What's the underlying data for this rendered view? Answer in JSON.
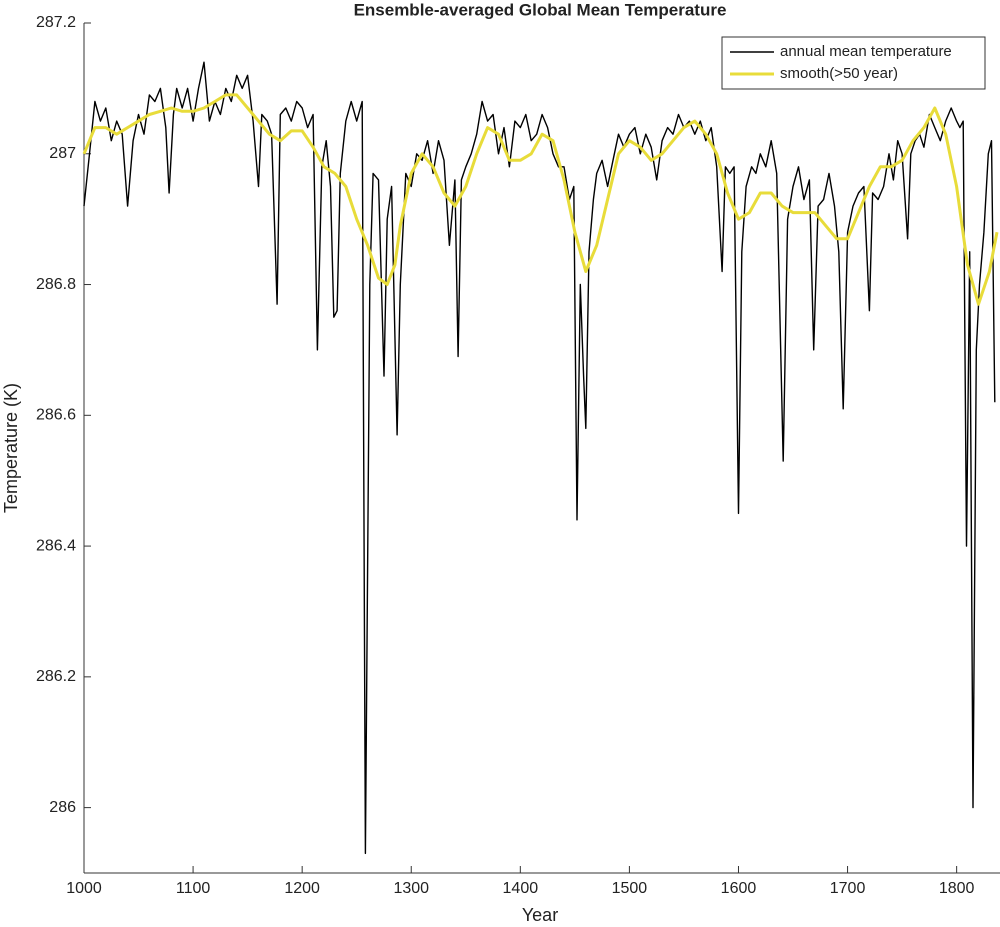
{
  "chart_data": {
    "type": "line",
    "title": "Ensemble-averaged Global Mean Temperature",
    "xlabel": "Year",
    "ylabel": "Temperature (K)",
    "xlim": [
      1000,
      1837
    ],
    "xticks": [
      1000,
      1100,
      1200,
      1300,
      1400,
      1500,
      1600,
      1700,
      1800
    ],
    "ylim": [
      285.9,
      287.2
    ],
    "yticks": [
      286,
      286.2,
      286.4,
      286.6,
      286.8,
      287,
      287.2
    ],
    "legend": "upper right",
    "series": [
      {
        "name": "annual mean temperature",
        "color": "#000000",
        "x": [
          1000,
          1005,
          1010,
          1015,
          1020,
          1025,
          1030,
          1035,
          1040,
          1045,
          1050,
          1055,
          1060,
          1065,
          1070,
          1075,
          1078,
          1082,
          1085,
          1090,
          1095,
          1100,
          1105,
          1110,
          1115,
          1120,
          1125,
          1130,
          1135,
          1140,
          1145,
          1150,
          1155,
          1160,
          1163,
          1168,
          1172,
          1177,
          1180,
          1185,
          1190,
          1195,
          1200,
          1205,
          1210,
          1214,
          1218,
          1222,
          1226,
          1229,
          1232,
          1235,
          1240,
          1245,
          1250,
          1255,
          1258,
          1262,
          1265,
          1270,
          1275,
          1278,
          1282,
          1287,
          1290,
          1295,
          1300,
          1305,
          1310,
          1315,
          1320,
          1325,
          1330,
          1335,
          1340,
          1343,
          1346,
          1350,
          1355,
          1360,
          1365,
          1370,
          1375,
          1380,
          1385,
          1390,
          1395,
          1400,
          1405,
          1410,
          1415,
          1420,
          1425,
          1430,
          1435,
          1440,
          1445,
          1449,
          1452,
          1455,
          1458,
          1460,
          1463,
          1467,
          1470,
          1475,
          1480,
          1485,
          1490,
          1495,
          1500,
          1505,
          1510,
          1515,
          1520,
          1525,
          1530,
          1535,
          1540,
          1545,
          1550,
          1555,
          1560,
          1565,
          1570,
          1575,
          1580,
          1585,
          1588,
          1592,
          1596,
          1600,
          1603,
          1607,
          1612,
          1616,
          1620,
          1625,
          1630,
          1635,
          1641,
          1645,
          1650,
          1655,
          1660,
          1665,
          1669,
          1673,
          1678,
          1683,
          1688,
          1692,
          1696,
          1700,
          1705,
          1710,
          1715,
          1720,
          1723,
          1728,
          1733,
          1738,
          1742,
          1746,
          1750,
          1755,
          1758,
          1762,
          1766,
          1770,
          1775,
          1780,
          1785,
          1790,
          1795,
          1800,
          1803,
          1806,
          1809,
          1812,
          1815,
          1818,
          1821,
          1825,
          1829,
          1832,
          1835
        ],
        "values": [
          286.92,
          287.0,
          287.08,
          287.05,
          287.07,
          287.02,
          287.05,
          287.03,
          286.92,
          287.02,
          287.06,
          287.03,
          287.09,
          287.08,
          287.1,
          287.04,
          286.94,
          287.06,
          287.1,
          287.07,
          287.1,
          287.05,
          287.1,
          287.14,
          287.05,
          287.08,
          287.06,
          287.1,
          287.08,
          287.12,
          287.1,
          287.12,
          287.05,
          286.95,
          287.06,
          287.05,
          287.03,
          286.77,
          287.06,
          287.07,
          287.05,
          287.08,
          287.07,
          287.04,
          287.06,
          286.7,
          286.98,
          287.02,
          286.95,
          286.75,
          286.76,
          286.97,
          287.05,
          287.08,
          287.05,
          287.08,
          285.93,
          286.8,
          286.97,
          286.96,
          286.66,
          286.9,
          286.95,
          286.57,
          286.8,
          286.97,
          286.95,
          287.0,
          286.99,
          287.02,
          286.97,
          287.02,
          286.99,
          286.86,
          286.96,
          286.69,
          286.96,
          286.98,
          287.0,
          287.03,
          287.08,
          287.05,
          287.06,
          287.0,
          287.04,
          286.98,
          287.05,
          287.04,
          287.06,
          287.02,
          287.03,
          287.06,
          287.04,
          287.0,
          286.98,
          286.98,
          286.93,
          286.95,
          286.44,
          286.8,
          286.66,
          286.58,
          286.85,
          286.93,
          286.97,
          286.99,
          286.95,
          286.99,
          287.03,
          287.01,
          287.03,
          287.04,
          287.0,
          287.03,
          287.01,
          286.96,
          287.02,
          287.04,
          287.03,
          287.06,
          287.04,
          287.05,
          287.03,
          287.05,
          287.02,
          287.04,
          286.98,
          286.82,
          286.98,
          286.97,
          286.98,
          286.45,
          286.85,
          286.95,
          286.98,
          286.97,
          287.0,
          286.98,
          287.02,
          286.97,
          286.53,
          286.9,
          286.95,
          286.98,
          286.93,
          286.96,
          286.7,
          286.92,
          286.93,
          286.97,
          286.92,
          286.85,
          286.61,
          286.88,
          286.92,
          286.94,
          286.95,
          286.76,
          286.94,
          286.93,
          286.95,
          287.0,
          286.96,
          287.02,
          287.0,
          286.87,
          287.0,
          287.02,
          287.03,
          287.01,
          287.06,
          287.04,
          287.02,
          287.05,
          287.07,
          287.05,
          287.04,
          287.05,
          286.4,
          286.85,
          286.0,
          286.7,
          286.8,
          286.88,
          287.0,
          287.02,
          286.62
        ]
      },
      {
        "name": "smooth(>50 year)",
        "color": "#e8dc3a",
        "x": [
          1000,
          1010,
          1020,
          1030,
          1040,
          1050,
          1060,
          1070,
          1080,
          1090,
          1100,
          1110,
          1120,
          1130,
          1140,
          1150,
          1160,
          1170,
          1180,
          1190,
          1200,
          1210,
          1220,
          1230,
          1240,
          1250,
          1260,
          1270,
          1278,
          1285,
          1290,
          1300,
          1310,
          1320,
          1330,
          1340,
          1350,
          1360,
          1370,
          1380,
          1390,
          1400,
          1410,
          1420,
          1430,
          1440,
          1450,
          1460,
          1470,
          1480,
          1490,
          1500,
          1510,
          1520,
          1530,
          1540,
          1550,
          1560,
          1570,
          1580,
          1590,
          1600,
          1610,
          1620,
          1630,
          1640,
          1650,
          1660,
          1670,
          1680,
          1690,
          1700,
          1710,
          1720,
          1730,
          1740,
          1750,
          1760,
          1770,
          1780,
          1790,
          1800,
          1810,
          1820,
          1830,
          1837
        ],
        "values": [
          287.0,
          287.04,
          287.04,
          287.03,
          287.04,
          287.05,
          287.06,
          287.065,
          287.07,
          287.065,
          287.065,
          287.07,
          287.08,
          287.09,
          287.09,
          287.07,
          287.05,
          287.03,
          287.02,
          287.035,
          287.035,
          287.01,
          286.98,
          286.97,
          286.95,
          286.9,
          286.86,
          286.81,
          286.8,
          286.83,
          286.89,
          286.97,
          287.0,
          286.98,
          286.94,
          286.92,
          286.95,
          287.0,
          287.04,
          287.03,
          286.99,
          286.99,
          287.0,
          287.03,
          287.02,
          286.96,
          286.88,
          286.82,
          286.86,
          286.93,
          287.0,
          287.02,
          287.01,
          286.99,
          287.0,
          287.02,
          287.04,
          287.05,
          287.03,
          287.0,
          286.94,
          286.9,
          286.91,
          286.94,
          286.94,
          286.92,
          286.91,
          286.91,
          286.91,
          286.89,
          286.87,
          286.87,
          286.91,
          286.95,
          286.98,
          286.98,
          286.99,
          287.02,
          287.04,
          287.07,
          287.03,
          286.95,
          286.83,
          286.77,
          286.82,
          286.88
        ]
      }
    ]
  }
}
